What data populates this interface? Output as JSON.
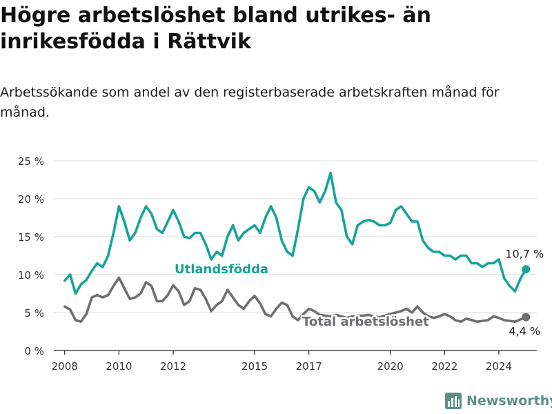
{
  "title": "Högre arbetslöshet bland utrikes- än inrikesfödda i Rättvik",
  "subtitle": "Arbetssökande som andel av den registerbaserade arbetskraften månad för månad.",
  "brand": "Newsworthy",
  "colors": {
    "utlandsfodda": "#17a398",
    "total": "#6e6e73",
    "grid": "#d9d9d9",
    "brand": "#5c8f8a"
  },
  "chart_data": {
    "type": "line",
    "title": "Högre arbetslöshet bland utrikes- än inrikesfödda i Rättvik",
    "xlabel": "",
    "ylabel": "",
    "ylim": [
      0,
      25
    ],
    "xlim": [
      2007.6,
      2025.4
    ],
    "y_ticks": [
      "0 %",
      "5 %",
      "10 %",
      "15 %",
      "20 %",
      "25 %"
    ],
    "x_ticks": [
      "2008",
      "2010",
      "2012",
      "2015",
      "2017",
      "2020",
      "2022",
      "2024"
    ],
    "grid": "horizontal",
    "series": [
      {
        "name": "Utlandsfödda",
        "end_label": "10,7 %",
        "x": [
          2008.0,
          2008.2,
          2008.4,
          2008.6,
          2008.8,
          2009.0,
          2009.2,
          2009.4,
          2009.6,
          2009.8,
          2010.0,
          2010.2,
          2010.4,
          2010.6,
          2010.8,
          2011.0,
          2011.2,
          2011.4,
          2011.6,
          2011.8,
          2012.0,
          2012.2,
          2012.4,
          2012.6,
          2012.8,
          2013.0,
          2013.2,
          2013.4,
          2013.6,
          2013.8,
          2014.0,
          2014.2,
          2014.4,
          2014.6,
          2014.8,
          2015.0,
          2015.2,
          2015.4,
          2015.6,
          2015.8,
          2016.0,
          2016.2,
          2016.4,
          2016.6,
          2016.8,
          2017.0,
          2017.2,
          2017.4,
          2017.6,
          2017.8,
          2018.0,
          2018.2,
          2018.4,
          2018.6,
          2018.8,
          2019.0,
          2019.2,
          2019.4,
          2019.6,
          2019.8,
          2020.0,
          2020.2,
          2020.4,
          2020.6,
          2020.8,
          2021.0,
          2021.2,
          2021.4,
          2021.6,
          2021.8,
          2022.0,
          2022.2,
          2022.4,
          2022.6,
          2022.8,
          2023.0,
          2023.2,
          2023.4,
          2023.6,
          2023.8,
          2024.0,
          2024.2,
          2024.4,
          2024.6,
          2024.8,
          2025.0
        ],
        "values": [
          9.2,
          10.0,
          7.5,
          8.7,
          9.3,
          10.5,
          11.5,
          11.0,
          12.5,
          15.5,
          19.0,
          17.0,
          14.5,
          15.5,
          17.5,
          19.0,
          18.0,
          16.0,
          15.5,
          17.0,
          18.5,
          17.0,
          15.0,
          14.8,
          15.5,
          15.5,
          14.0,
          12.0,
          13.0,
          12.5,
          15.0,
          16.5,
          14.5,
          15.5,
          16.0,
          16.5,
          15.5,
          17.5,
          19.0,
          17.5,
          14.5,
          13.0,
          12.5,
          16.0,
          20.0,
          21.5,
          21.0,
          19.5,
          21.0,
          23.4,
          19.5,
          18.5,
          15.0,
          14.0,
          16.5,
          17.0,
          17.2,
          17.0,
          16.5,
          16.5,
          16.8,
          18.5,
          19.0,
          18.0,
          17.0,
          17.0,
          14.5,
          13.5,
          13.0,
          13.0,
          12.5,
          12.5,
          12.0,
          12.5,
          12.5,
          11.5,
          11.5,
          11.0,
          11.5,
          11.5,
          12.0,
          9.5,
          8.5,
          7.8,
          9.5,
          10.7
        ]
      },
      {
        "name": "Total arbetslöshet",
        "end_label": "4,4 %",
        "x": [
          2008.0,
          2008.2,
          2008.4,
          2008.6,
          2008.8,
          2009.0,
          2009.2,
          2009.4,
          2009.6,
          2009.8,
          2010.0,
          2010.2,
          2010.4,
          2010.6,
          2010.8,
          2011.0,
          2011.2,
          2011.4,
          2011.6,
          2011.8,
          2012.0,
          2012.2,
          2012.4,
          2012.6,
          2012.8,
          2013.0,
          2013.2,
          2013.4,
          2013.6,
          2013.8,
          2014.0,
          2014.2,
          2014.4,
          2014.6,
          2014.8,
          2015.0,
          2015.2,
          2015.4,
          2015.6,
          2015.8,
          2016.0,
          2016.2,
          2016.4,
          2016.6,
          2016.8,
          2017.0,
          2017.2,
          2017.4,
          2017.6,
          2017.8,
          2018.0,
          2018.2,
          2018.4,
          2018.6,
          2018.8,
          2019.0,
          2019.2,
          2019.4,
          2019.6,
          2019.8,
          2020.0,
          2020.2,
          2020.4,
          2020.6,
          2020.8,
          2021.0,
          2021.2,
          2021.4,
          2021.6,
          2021.8,
          2022.0,
          2022.2,
          2022.4,
          2022.6,
          2022.8,
          2023.0,
          2023.2,
          2023.4,
          2023.6,
          2023.8,
          2024.0,
          2024.2,
          2024.4,
          2024.6,
          2024.8,
          2025.0
        ],
        "values": [
          5.8,
          5.4,
          4.0,
          3.8,
          4.8,
          7.0,
          7.3,
          7.0,
          7.3,
          8.5,
          9.6,
          8.2,
          6.8,
          7.0,
          7.5,
          9.0,
          8.5,
          6.5,
          6.5,
          7.3,
          8.6,
          7.8,
          6.0,
          6.5,
          8.2,
          8.0,
          6.8,
          5.2,
          6.0,
          6.5,
          8.0,
          7.0,
          6.0,
          5.5,
          6.5,
          7.2,
          6.2,
          4.8,
          4.5,
          5.5,
          6.3,
          6.0,
          4.5,
          4.0,
          4.8,
          5.5,
          5.2,
          4.7,
          4.6,
          4.5,
          4.7,
          4.5,
          4.3,
          4.5,
          4.6,
          4.6,
          4.7,
          4.5,
          4.4,
          4.6,
          4.8,
          5.0,
          5.2,
          5.5,
          5.0,
          5.8,
          5.0,
          4.5,
          4.3,
          4.5,
          4.8,
          4.5,
          4.0,
          3.8,
          4.2,
          4.0,
          3.8,
          3.9,
          4.0,
          4.5,
          4.3,
          4.0,
          3.9,
          3.8,
          4.1,
          4.4
        ]
      }
    ]
  }
}
